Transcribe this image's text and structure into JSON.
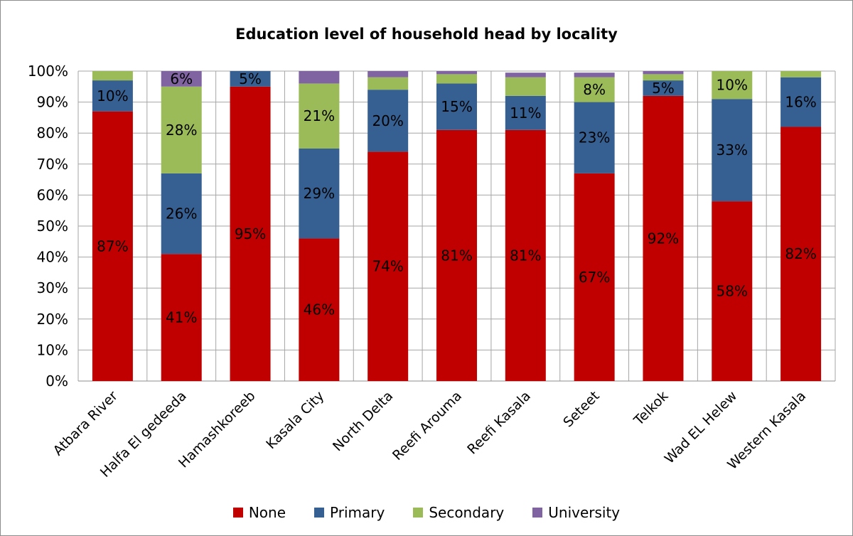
{
  "chart_data": {
    "type": "bar",
    "stacked": true,
    "title": "Education level of household head by locality",
    "xlabel": "",
    "ylabel": "",
    "ylim": [
      0,
      100
    ],
    "yticks": [
      "0%",
      "10%",
      "20%",
      "30%",
      "40%",
      "50%",
      "60%",
      "70%",
      "80%",
      "90%",
      "100%"
    ],
    "grid": true,
    "legend_position": "bottom",
    "categories": [
      "Atbara River",
      "Halfa El gedeeda",
      "Hamashkoreeb",
      "Kasala City",
      "North Delta",
      "Reefi Arouma",
      "Reefi Kasala",
      "Seteet",
      "Telkok",
      "Wad EL Helew",
      "Western Kasala"
    ],
    "series": [
      {
        "name": "None",
        "color": "#c00000",
        "values": [
          87,
          41,
          95,
          46,
          74,
          81,
          81,
          67,
          92,
          58,
          82
        ],
        "labels": [
          "87%",
          "41%",
          "95%",
          "46%",
          "74%",
          "81%",
          "81%",
          "67%",
          "92%",
          "58%",
          "82%"
        ]
      },
      {
        "name": "Primary",
        "color": "#376092",
        "values": [
          10,
          26,
          5,
          29,
          20,
          15,
          11,
          23,
          5,
          33,
          16
        ],
        "labels": [
          "10%",
          "26%",
          "5%",
          "29%",
          "20%",
          "15%",
          "11%",
          "23%",
          "5%",
          "33%",
          "16%"
        ]
      },
      {
        "name": "Secondary",
        "color": "#9bbb59",
        "values": [
          3,
          28,
          0.5,
          21,
          4,
          3,
          6,
          8,
          2,
          10,
          2.5
        ],
        "labels": [
          "",
          "28%",
          "",
          "21%",
          "",
          "",
          "",
          "8%",
          "",
          "10%",
          ""
        ]
      },
      {
        "name": "University",
        "color": "#8064a2",
        "values": [
          0,
          6,
          0.5,
          4,
          2,
          1,
          1.5,
          1.5,
          1,
          0,
          0
        ],
        "labels": [
          "",
          "6%",
          "",
          "",
          "",
          "",
          "",
          "",
          "",
          "",
          ""
        ]
      }
    ]
  }
}
